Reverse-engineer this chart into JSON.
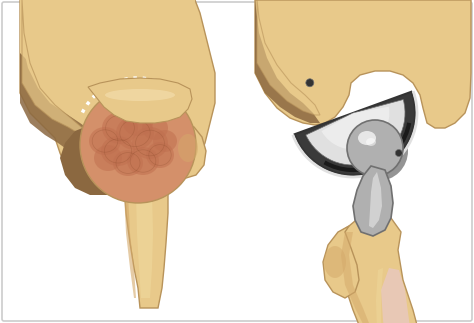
{
  "bg_color": "#ffffff",
  "border_color": "#cccccc",
  "bone_light": "#e8c98a",
  "bone_mid": "#d4a96a",
  "bone_dark": "#b8935a",
  "bone_shadow": "#8b6840",
  "joint_light": "#d4906a",
  "joint_mid": "#c07050",
  "joint_dark": "#8a4a2a",
  "metal_light": "#e0e0e0",
  "metal_mid": "#b0b0b0",
  "metal_dark": "#707070",
  "metal_black": "#333333",
  "pink_marrow": "#e8c8c8",
  "fig_width": 4.74,
  "fig_height": 3.23,
  "dpi": 100
}
